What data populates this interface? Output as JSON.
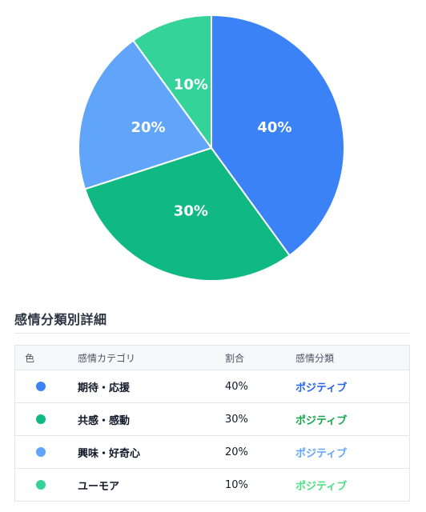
{
  "chart_data": {
    "type": "pie",
    "slices": [
      {
        "label": "期待・応援",
        "value": 40,
        "display": "40%",
        "color": "#3b82f6"
      },
      {
        "label": "共感・感動",
        "value": 30,
        "display": "30%",
        "color": "#10b981"
      },
      {
        "label": "興味・好奇心",
        "value": 20,
        "display": "20%",
        "color": "#60a5fa"
      },
      {
        "label": "ユーモア",
        "value": 10,
        "display": "10%",
        "color": "#34d399"
      }
    ]
  },
  "section": {
    "title": "感情分類別詳細"
  },
  "table": {
    "headers": {
      "color": "色",
      "category": "感情カテゴリ",
      "ratio": "割合",
      "classification": "感情分類"
    },
    "rows": [
      {
        "category": "期待・応援",
        "ratio": "40%",
        "classification": "ポジティブ",
        "dot_color": "#3b82f6",
        "class_color": "#2563eb"
      },
      {
        "category": "共感・感動",
        "ratio": "30%",
        "classification": "ポジティブ",
        "dot_color": "#10b981",
        "class_color": "#16a34a"
      },
      {
        "category": "興味・好奇心",
        "ratio": "20%",
        "classification": "ポジティブ",
        "dot_color": "#60a5fa",
        "class_color": "#60a5fa"
      },
      {
        "category": "ユーモア",
        "ratio": "10%",
        "classification": "ポジティブ",
        "dot_color": "#34d399",
        "class_color": "#4ade80"
      }
    ]
  }
}
